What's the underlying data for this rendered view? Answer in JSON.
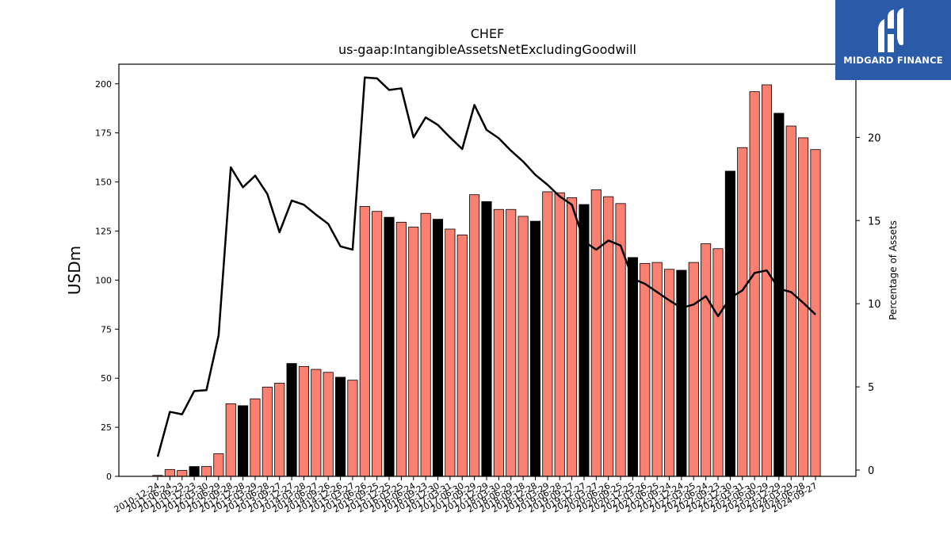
{
  "brand": {
    "name": "MIDGARD FINANCE",
    "bg_color": "#2a5aa8"
  },
  "chart_data": {
    "type": "bar",
    "title": "CHEF",
    "subtitle": "us-gaap:IntangibleAssetsNetExcludingGoodwill",
    "ylabel": "USDm",
    "y2label": "Percentage of Assets",
    "ylim": [
      0,
      210
    ],
    "y2lim": [
      -0.38,
      24.4
    ],
    "yticks": [
      0,
      25,
      50,
      75,
      100,
      125,
      150,
      175,
      200
    ],
    "y2ticks": [
      0,
      5,
      10,
      15,
      20
    ],
    "grid": false,
    "colors": {
      "bar": "#fa8072",
      "bar_highlight": "#000000",
      "line": "#000000"
    },
    "categories": [
      "2010-12-24",
      "2011-06-24",
      "2011-09-23",
      "2011-12-23",
      "2012-03-30",
      "2012-06-29",
      "2012-09-28",
      "2012-12-28",
      "2013-03-29",
      "2013-06-28",
      "2013-09-27",
      "2013-12-27",
      "2014-03-28",
      "2014-06-27",
      "2014-09-26",
      "2014-12-26",
      "2015-03-27",
      "2015-06-26",
      "2015-09-25",
      "2015-12-25",
      "2016-03-25",
      "2016-06-24",
      "2016-09-23",
      "2016-12-30",
      "2017-03-31",
      "2017-06-30",
      "2017-09-29",
      "2017-12-29",
      "2018-03-30",
      "2018-06-29",
      "2018-09-28",
      "2018-12-28",
      "2019-03-29",
      "2019-06-28",
      "2019-09-27",
      "2019-12-27",
      "2020-03-27",
      "2020-06-26",
      "2020-09-25",
      "2020-12-25",
      "2021-03-26",
      "2021-06-25",
      "2021-09-24",
      "2021-12-24",
      "2022-03-25",
      "2022-06-24",
      "2022-09-23",
      "2022-12-30",
      "2023-03-31",
      "2023-06-30",
      "2023-09-29",
      "2023-12-29",
      "2024-03-29",
      "2024-06-28",
      "2024-09-27"
    ],
    "series": [
      {
        "kind": "bar",
        "axis": "left",
        "values": [
          0.5,
          3.5,
          3.0,
          5.0,
          5.0,
          11.5,
          37.0,
          36.0,
          39.5,
          45.5,
          47.5,
          57.5,
          56.0,
          54.5,
          53.0,
          50.5,
          49.0,
          137.5,
          135.0,
          132.0,
          129.5,
          127.0,
          134.0,
          131.0,
          126.0,
          123.0,
          143.5,
          140.0,
          136.0,
          136.0,
          132.5,
          130.0,
          145.0,
          144.5,
          142.0,
          138.5,
          146.0,
          142.5,
          139.0,
          111.5,
          108.5,
          109.0,
          105.5,
          105.0,
          109.0,
          118.5,
          116.0,
          155.5,
          167.5,
          196.0,
          199.5,
          185.0,
          178.5,
          172.5,
          166.5
        ],
        "highlight": [
          false,
          false,
          false,
          true,
          false,
          false,
          false,
          true,
          false,
          false,
          false,
          true,
          false,
          false,
          false,
          true,
          false,
          false,
          false,
          true,
          false,
          false,
          false,
          true,
          false,
          false,
          false,
          true,
          false,
          false,
          false,
          true,
          false,
          false,
          false,
          true,
          false,
          false,
          false,
          true,
          false,
          false,
          false,
          true,
          false,
          false,
          false,
          true,
          false,
          false,
          false,
          true,
          false,
          false,
          false
        ]
      },
      {
        "kind": "line",
        "axis": "right",
        "values": [
          0.8,
          3.5,
          3.35,
          4.75,
          4.8,
          8.1,
          18.2,
          17.0,
          17.7,
          16.6,
          14.3,
          16.2,
          15.95,
          15.35,
          14.8,
          13.45,
          13.25,
          23.6,
          23.55,
          22.85,
          22.95,
          20.0,
          21.2,
          20.75,
          20.0,
          19.3,
          21.95,
          20.45,
          19.95,
          19.2,
          18.55,
          17.75,
          17.15,
          16.45,
          15.95,
          13.75,
          13.25,
          13.8,
          13.5,
          11.5,
          11.2,
          10.7,
          10.2,
          9.75,
          9.95,
          10.45,
          9.25,
          10.35,
          10.8,
          11.85,
          12.0,
          10.9,
          10.7,
          10.05,
          9.35
        ]
      }
    ]
  }
}
